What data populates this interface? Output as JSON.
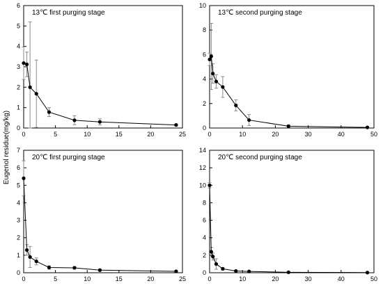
{
  "figure": {
    "ylabel": "Eugenol residue(mg/kg)"
  },
  "chart_data": [
    {
      "type": "line",
      "title": "13℃  first purging stage",
      "xlabel": "",
      "ylabel": "Eugenol residue(mg/kg)",
      "xlim": [
        0,
        25
      ],
      "ylim": [
        0,
        6
      ],
      "xticks": [
        0,
        5,
        10,
        15,
        20,
        25
      ],
      "yticks": [
        0,
        1,
        2,
        3,
        4,
        5,
        6
      ],
      "grid": false,
      "x": [
        0,
        0.5,
        1,
        2,
        4,
        8,
        12,
        24
      ],
      "y": [
        3.18,
        3.12,
        2.0,
        1.68,
        0.78,
        0.38,
        0.3,
        0.15
      ],
      "yerr": [
        0.8,
        0.6,
        3.2,
        1.65,
        0.22,
        0.22,
        0.15,
        0.05
      ]
    },
    {
      "type": "line",
      "title": "13℃  second purging stage",
      "xlabel": "",
      "ylabel": "",
      "xlim": [
        0,
        50
      ],
      "ylim": [
        0,
        10
      ],
      "xticks": [
        0,
        10,
        20,
        30,
        40,
        50
      ],
      "yticks": [
        0,
        2,
        4,
        6,
        8,
        10
      ],
      "grid": false,
      "x": [
        0,
        0.5,
        1,
        2,
        4,
        8,
        12,
        24,
        48
      ],
      "y": [
        5.6,
        5.85,
        4.45,
        3.8,
        3.35,
        1.85,
        0.65,
        0.15,
        0.05
      ],
      "yerr": [
        0.5,
        2.7,
        0.8,
        0.55,
        0.85,
        0.45,
        0.45,
        0.1,
        0.05
      ]
    },
    {
      "type": "line",
      "title": "20℃  first purging stage",
      "xlabel": "",
      "ylabel": "",
      "xlim": [
        0,
        25
      ],
      "ylim": [
        0,
        7
      ],
      "xticks": [
        0,
        5,
        10,
        15,
        20,
        25
      ],
      "yticks": [
        0,
        1,
        2,
        3,
        4,
        5,
        6,
        7
      ],
      "grid": false,
      "x": [
        0,
        0.5,
        1,
        2,
        4,
        8,
        12,
        24
      ],
      "y": [
        5.4,
        1.3,
        0.9,
        0.65,
        0.3,
        0.28,
        0.15,
        0.08
      ],
      "yerr": [
        1.0,
        0.3,
        0.6,
        0.2,
        0.1,
        0.08,
        0.05,
        0.03
      ]
    },
    {
      "type": "line",
      "title": "20℃  second purging stage",
      "xlabel": "",
      "ylabel": "",
      "xlim": [
        0,
        50
      ],
      "ylim": [
        0,
        14
      ],
      "xticks": [
        0,
        10,
        20,
        30,
        40,
        50
      ],
      "yticks": [
        0,
        2,
        4,
        6,
        8,
        10,
        12,
        14
      ],
      "grid": false,
      "x": [
        0,
        0.5,
        1,
        2,
        4,
        8,
        12,
        24,
        48
      ],
      "y": [
        10.0,
        2.4,
        1.85,
        1.0,
        0.45,
        0.2,
        0.15,
        0.05,
        0.02
      ],
      "yerr": [
        0.3,
        0.5,
        0.4,
        0.6,
        0.15,
        0.05,
        0.05,
        0.02,
        0.01
      ]
    }
  ]
}
